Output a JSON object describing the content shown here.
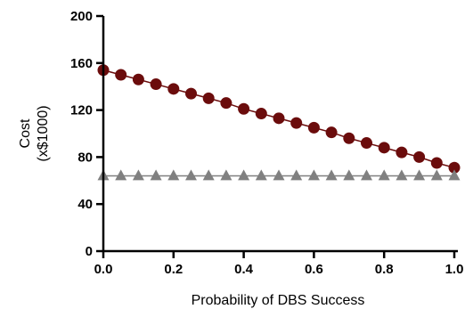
{
  "chart_data": {
    "type": "line",
    "title": "",
    "xlabel": "Probability of DBS Success",
    "ylabel_lines": [
      "Cost",
      "(x$1000)"
    ],
    "xlim": [
      0,
      1
    ],
    "ylim": [
      0,
      200
    ],
    "x_ticks": [
      0,
      0.2,
      0.4,
      0.6,
      0.8,
      1.0
    ],
    "x_tick_labels": [
      "0.0",
      "0.2",
      "0.4",
      "0.6",
      "0.8",
      "1.0"
    ],
    "y_ticks": [
      0,
      40,
      80,
      120,
      160,
      200
    ],
    "y_tick_labels": [
      "0",
      "40",
      "80",
      "120",
      "160",
      "200"
    ],
    "grid": false,
    "x": [
      0,
      0.05,
      0.1,
      0.15,
      0.2,
      0.25,
      0.3,
      0.35,
      0.4,
      0.45,
      0.5,
      0.55,
      0.6,
      0.65,
      0.7,
      0.75,
      0.8,
      0.85,
      0.9,
      0.95,
      1.0
    ],
    "series": [
      {
        "marker": "circle",
        "color": "#6b0c0c",
        "values": [
          154,
          150,
          146,
          142,
          138,
          134,
          130,
          126,
          121,
          117,
          113,
          109,
          105,
          101,
          96,
          92,
          88,
          84,
          80,
          75,
          71
        ]
      },
      {
        "marker": "triangle",
        "color": "#808080",
        "values": [
          64,
          64,
          64,
          64,
          64,
          64,
          64,
          64,
          64,
          64,
          64,
          64,
          64,
          64,
          64,
          64,
          64,
          64,
          64,
          64,
          64
        ]
      }
    ]
  }
}
